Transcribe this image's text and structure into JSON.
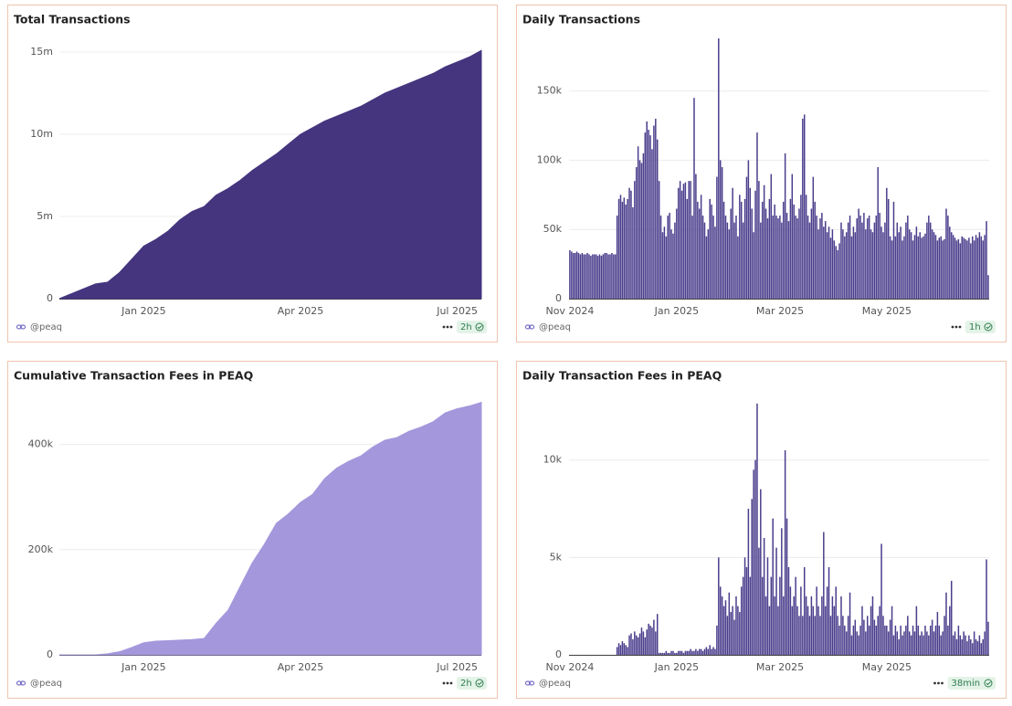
{
  "chart_data": [
    {
      "type": "area",
      "title": "Total Transactions",
      "color": "#45357f",
      "grid": true,
      "source": "@peaq",
      "updated": "2h",
      "categories": [
        null,
        null,
        null,
        null,
        null,
        null,
        null,
        "Jan 2025",
        null,
        null,
        null,
        null,
        null,
        null,
        null,
        null,
        null,
        null,
        null,
        null,
        "Apr 2025",
        null,
        null,
        null,
        null,
        null,
        null,
        null,
        null,
        null,
        null,
        null,
        null,
        "Jul 2025",
        null,
        null
      ],
      "values": [
        0,
        300000,
        600000,
        900000,
        1000000,
        1600000,
        2400000,
        3200000,
        3600000,
        4100000,
        4800000,
        5300000,
        5600000,
        6300000,
        6700000,
        7200000,
        7800000,
        8300000,
        8800000,
        9400000,
        10000000,
        10400000,
        10800000,
        11100000,
        11400000,
        11700000,
        12100000,
        12500000,
        12800000,
        13100000,
        13400000,
        13700000,
        14100000,
        14400000,
        14700000,
        15100000
      ],
      "ylim": [
        0,
        16000000
      ],
      "yticks": [
        0,
        {
          "value": 5000000,
          "label": "5m"
        },
        {
          "value": 10000000,
          "label": "10m"
        },
        {
          "value": 15000000,
          "label": "15m"
        }
      ]
    },
    {
      "type": "bar",
      "title": "Daily Transactions",
      "color": "#4a3d8c",
      "grid": true,
      "source": "@peaq",
      "updated": "1h",
      "categories": [
        "Nov 2024",
        null,
        null,
        null,
        null,
        null,
        null,
        null,
        null,
        null,
        null,
        null,
        null,
        null,
        null,
        null,
        null,
        null,
        null,
        null,
        null,
        null,
        null,
        null,
        null,
        null,
        null,
        null,
        null,
        null,
        null,
        null,
        null,
        null,
        null,
        null,
        null,
        null,
        null,
        null,
        null,
        null,
        null,
        null,
        null,
        null,
        null,
        null,
        null,
        null,
        null,
        null,
        null,
        null,
        null,
        null,
        null,
        null,
        null,
        null,
        null,
        "Jan 2025",
        null,
        null,
        null,
        null,
        null,
        null,
        null,
        null,
        null,
        null,
        null,
        null,
        null,
        null,
        null,
        null,
        null,
        null,
        null,
        null,
        null,
        null,
        null,
        null,
        null,
        null,
        null,
        null,
        null,
        null,
        null,
        null,
        null,
        null,
        null,
        null,
        null,
        null,
        null,
        null,
        null,
        null,
        null,
        null,
        null,
        null,
        null,
        null,
        null,
        null,
        null,
        null,
        null,
        null,
        null,
        null,
        null,
        null,
        "Mar 2025",
        null,
        null,
        null,
        null,
        null,
        null,
        null,
        null,
        null,
        null,
        null,
        null,
        null,
        null,
        null,
        null,
        null,
        null,
        null,
        null,
        null,
        null,
        null,
        null,
        null,
        null,
        null,
        null,
        null,
        null,
        null,
        null,
        null,
        null,
        null,
        null,
        null,
        null,
        null,
        null,
        null,
        null,
        null,
        null,
        null,
        null,
        null,
        null,
        null,
        null,
        null,
        null,
        null,
        null,
        null,
        null,
        null,
        null,
        null,
        null,
        "May 2025",
        null,
        null,
        null,
        null,
        null,
        null,
        null,
        null,
        null,
        null,
        null,
        null,
        null,
        null,
        null,
        null,
        null,
        null,
        null,
        null,
        null,
        null,
        null,
        null,
        null,
        null,
        null,
        null,
        null,
        null,
        null,
        null,
        null,
        null,
        null,
        null,
        null,
        null,
        null,
        null,
        null,
        null,
        null,
        null,
        null,
        null,
        null,
        null,
        null,
        null,
        null,
        null,
        null,
        null,
        null,
        null,
        null,
        null
      ],
      "values": [
        35000,
        34000,
        33000,
        33000,
        34000,
        33000,
        32000,
        33000,
        32000,
        32000,
        33000,
        32000,
        31000,
        32000,
        32000,
        32000,
        31000,
        32000,
        31000,
        32000,
        33000,
        33000,
        32000,
        32000,
        33000,
        32000,
        32000,
        60000,
        72000,
        75000,
        70000,
        73000,
        68000,
        72000,
        80000,
        78000,
        66000,
        85000,
        95000,
        110000,
        100000,
        98000,
        105000,
        120000,
        128000,
        122000,
        118000,
        108000,
        125000,
        130000,
        115000,
        85000,
        60000,
        48000,
        52000,
        45000,
        60000,
        62000,
        50000,
        47000,
        55000,
        65000,
        80000,
        85000,
        78000,
        83000,
        84000,
        72000,
        85000,
        85000,
        60000,
        145000,
        90000,
        70000,
        65000,
        75000,
        60000,
        55000,
        45000,
        50000,
        72000,
        68000,
        60000,
        52000,
        88000,
        188000,
        100000,
        95000,
        70000,
        60000,
        55000,
        50000,
        65000,
        80000,
        55000,
        60000,
        45000,
        75000,
        70000,
        55000,
        72000,
        88000,
        100000,
        80000,
        65000,
        48000,
        78000,
        120000,
        85000,
        55000,
        70000,
        82000,
        65000,
        58000,
        72000,
        90000,
        60000,
        68000,
        60000,
        58000,
        60000,
        55000,
        70000,
        105000,
        62000,
        56000,
        72000,
        90000,
        68000,
        60000,
        58000,
        65000,
        75000,
        130000,
        133000,
        75000,
        60000,
        55000,
        65000,
        88000,
        70000,
        60000,
        50000,
        58000,
        62000,
        52000,
        56000,
        48000,
        52000,
        44000,
        50000,
        42000,
        38000,
        35000,
        40000,
        55000,
        50000,
        45000,
        48000,
        55000,
        60000,
        45000,
        52000,
        48000,
        58000,
        65000,
        60000,
        55000,
        62000,
        50000,
        58000,
        60000,
        50000,
        48000,
        55000,
        60000,
        95000,
        62000,
        52000,
        48000,
        55000,
        80000,
        72000,
        45000,
        42000,
        70000,
        45000,
        55000,
        48000,
        52000,
        42000,
        45000,
        55000,
        60000,
        50000,
        48000,
        42000,
        46000,
        52000,
        45000,
        48000,
        44000,
        45000,
        47000,
        55000,
        60000,
        55000,
        50000,
        48000,
        46000,
        42000,
        44000,
        45000,
        42000,
        43000,
        65000,
        60000,
        52000,
        48000,
        46000,
        44000,
        42000,
        43000,
        40000,
        45000,
        44000,
        43000,
        42000,
        44000,
        40000,
        45000,
        42000,
        46000,
        44000,
        48000,
        45000,
        42000,
        46000,
        56000,
        17000
      ],
      "ylim": [
        0,
        190000
      ],
      "yticks": [
        0,
        {
          "value": 50000,
          "label": "50k"
        },
        {
          "value": 100000,
          "label": "100k"
        },
        {
          "value": 150000,
          "label": "150k"
        }
      ]
    },
    {
      "type": "area",
      "title": "Cumulative Transaction Fees in PEAQ",
      "color": "#a497dc",
      "grid": true,
      "source": "@peaq",
      "updated": "2h",
      "categories": [
        null,
        null,
        null,
        null,
        null,
        null,
        null,
        "Jan 2025",
        null,
        null,
        null,
        null,
        null,
        null,
        null,
        null,
        null,
        null,
        null,
        null,
        "Apr 2025",
        null,
        null,
        null,
        null,
        null,
        null,
        null,
        null,
        null,
        null,
        null,
        null,
        "Jul 2025",
        null,
        null
      ],
      "values": [
        0,
        0,
        0,
        0,
        2000,
        6000,
        14000,
        23000,
        26000,
        27000,
        28000,
        29000,
        31000,
        60000,
        85000,
        130000,
        175000,
        210000,
        250000,
        268000,
        290000,
        305000,
        335000,
        355000,
        368000,
        378000,
        395000,
        408000,
        413000,
        425000,
        433000,
        443000,
        460000,
        468000,
        473000,
        480000
      ],
      "ylim": [
        0,
        500000
      ],
      "yticks": [
        0,
        {
          "value": 200000,
          "label": "200k"
        },
        {
          "value": 400000,
          "label": "400k"
        }
      ]
    },
    {
      "type": "bar",
      "title": "Daily Transaction Fees in PEAQ",
      "color": "#4a3d8c",
      "grid": true,
      "source": "@peaq",
      "updated": "38min",
      "categories": [
        "Nov 2024",
        null,
        null,
        null,
        null,
        null,
        null,
        null,
        null,
        null,
        null,
        null,
        null,
        null,
        null,
        null,
        null,
        null,
        null,
        null,
        null,
        null,
        null,
        null,
        null,
        null,
        null,
        null,
        null,
        null,
        null,
        null,
        null,
        null,
        null,
        null,
        null,
        null,
        null,
        null,
        null,
        null,
        null,
        null,
        null,
        null,
        null,
        null,
        null,
        null,
        null,
        null,
        null,
        null,
        null,
        null,
        null,
        null,
        null,
        null,
        null,
        "Jan 2025",
        null,
        null,
        null,
        null,
        null,
        null,
        null,
        null,
        null,
        null,
        null,
        null,
        null,
        null,
        null,
        null,
        null,
        null,
        null,
        null,
        null,
        null,
        null,
        null,
        null,
        null,
        null,
        null,
        null,
        null,
        null,
        null,
        null,
        null,
        null,
        null,
        null,
        null,
        null,
        null,
        null,
        null,
        null,
        null,
        null,
        null,
        null,
        null,
        null,
        null,
        null,
        null,
        null,
        null,
        null,
        null,
        null,
        null,
        "Mar 2025",
        null,
        null,
        null,
        null,
        null,
        null,
        null,
        null,
        null,
        null,
        null,
        null,
        null,
        null,
        null,
        null,
        null,
        null,
        null,
        null,
        null,
        null,
        null,
        null,
        null,
        null,
        null,
        null,
        null,
        null,
        null,
        null,
        null,
        null,
        null,
        null,
        null,
        null,
        null,
        null,
        null,
        null,
        null,
        null,
        null,
        null,
        null,
        null,
        null,
        null,
        null,
        null,
        null,
        null,
        null,
        null,
        null,
        null,
        null,
        null,
        "May 2025",
        null,
        null,
        null,
        null,
        null,
        null,
        null,
        null,
        null,
        null,
        null,
        null,
        null,
        null,
        null,
        null,
        null,
        null,
        null,
        null,
        null,
        null,
        null,
        null,
        null,
        null,
        null,
        null,
        null,
        null,
        null,
        null,
        null,
        null,
        null,
        null,
        null,
        null,
        null,
        null,
        null,
        null,
        null,
        null,
        null,
        null,
        null,
        null,
        null,
        null,
        null,
        null,
        null,
        null,
        null,
        null,
        null,
        null
      ],
      "values": [
        0,
        0,
        0,
        0,
        0,
        0,
        0,
        0,
        0,
        0,
        0,
        0,
        0,
        0,
        0,
        0,
        0,
        0,
        0,
        0,
        0,
        0,
        0,
        0,
        0,
        0,
        0,
        400,
        600,
        500,
        700,
        600,
        500,
        400,
        1000,
        1100,
        800,
        1200,
        1000,
        900,
        1100,
        1400,
        1200,
        900,
        1300,
        1600,
        1500,
        1400,
        1800,
        1200,
        2100,
        100,
        100,
        100,
        100,
        200,
        100,
        100,
        200,
        200,
        100,
        100,
        200,
        200,
        200,
        100,
        200,
        200,
        200,
        300,
        200,
        200,
        300,
        200,
        300,
        300,
        200,
        300,
        400,
        300,
        500,
        300,
        400,
        300,
        1500,
        5000,
        3500,
        3000,
        2500,
        2800,
        2000,
        3200,
        2200,
        2500,
        1800,
        3000,
        2500,
        2200,
        3500,
        4000,
        5000,
        4500,
        7500,
        4000,
        8000,
        9500,
        10000,
        12900,
        5500,
        8500,
        4000,
        6000,
        3000,
        5000,
        2500,
        4000,
        7000,
        3000,
        5500,
        2500,
        4000,
        6500,
        3000,
        10500,
        7000,
        4500,
        3500,
        2500,
        3000,
        4000,
        2500,
        2000,
        3500,
        2000,
        4500,
        3000,
        2500,
        2000,
        3000,
        2500,
        2000,
        3500,
        2500,
        2000,
        3000,
        6300,
        2500,
        3500,
        4500,
        2000,
        3000,
        2500,
        3500,
        2000,
        1500,
        3000,
        2000,
        1500,
        1200,
        2000,
        3200,
        1000,
        1500,
        1800,
        1200,
        1000,
        1500,
        2500,
        1800,
        1200,
        2000,
        1500,
        2500,
        3000,
        1800,
        1500,
        2000,
        2500,
        5700,
        2000,
        1500,
        1500,
        1200,
        1800,
        2500,
        1000,
        1500,
        1200,
        800,
        1500,
        1000,
        1200,
        1500,
        2000,
        1200,
        1000,
        1500,
        1200,
        2500,
        1500,
        1000,
        1200,
        1000,
        1500,
        1200,
        1000,
        1500,
        1800,
        1200,
        1500,
        2200,
        1500,
        1000,
        1200,
        2000,
        3200,
        1500,
        2500,
        3800,
        1000,
        1200,
        800,
        1500,
        1000,
        800,
        1200,
        1000,
        700,
        1000,
        800,
        600,
        1200,
        800,
        700,
        1000,
        600,
        800,
        1200,
        4900,
        1700
      ],
      "ylim": [
        0,
        13500
      ],
      "yticks": [
        0,
        {
          "value": 5000,
          "label": "5k"
        },
        {
          "value": 10000,
          "label": "10k"
        }
      ]
    }
  ]
}
